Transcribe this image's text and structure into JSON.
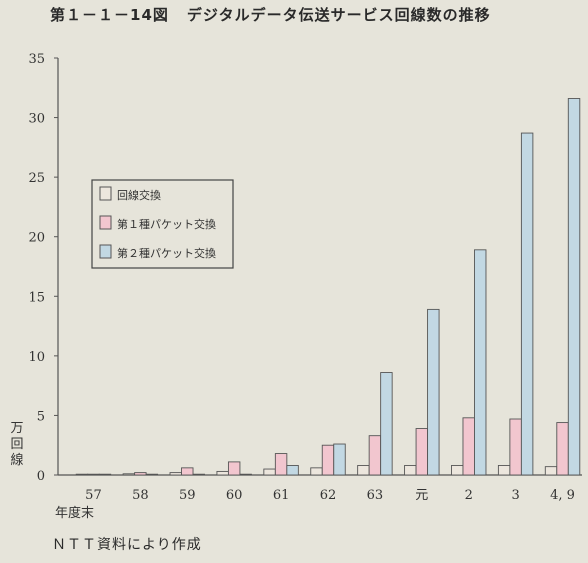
{
  "header": {
    "figure_number": "第１－１－14図",
    "title": "デジタルデータ伝送サービス回線数の推移"
  },
  "footer": {
    "source": "ＮＴＴ資料により作成"
  },
  "chart_data": {
    "type": "bar",
    "ylabel": "万回線",
    "xlabel": "年度末",
    "ylim": [
      0,
      35
    ],
    "yticks": [
      0,
      5,
      10,
      15,
      20,
      25,
      30,
      35
    ],
    "categories": [
      "57",
      "58",
      "59",
      "60",
      "61",
      "62",
      "63",
      "元",
      "2",
      "3",
      "4, 9"
    ],
    "series": [
      {
        "name": "回線交換",
        "color": "#ece6dd",
        "values": [
          0.05,
          0.1,
          0.2,
          0.3,
          0.5,
          0.6,
          0.8,
          0.8,
          0.8,
          0.8,
          0.7
        ]
      },
      {
        "name": "第１種パケット交換",
        "color": "#f2c6cf",
        "values": [
          0.05,
          0.2,
          0.6,
          1.1,
          1.8,
          2.5,
          3.3,
          3.9,
          4.8,
          4.7,
          4.4
        ]
      },
      {
        "name": "第２種パケット交換",
        "color": "#c2d8e3",
        "values": [
          0,
          0,
          0,
          0,
          0.8,
          2.6,
          8.6,
          13.9,
          18.9,
          28.7,
          31.6
        ]
      }
    ],
    "legend": "upper-left",
    "grid": false
  }
}
